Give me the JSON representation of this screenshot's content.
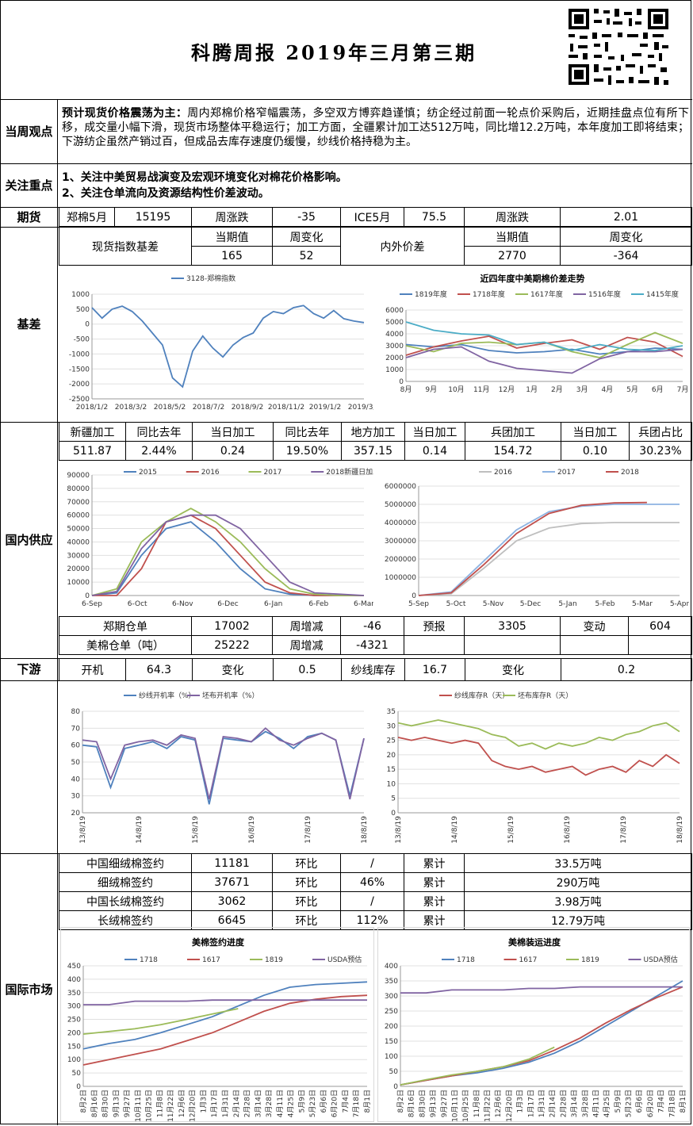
{
  "header": {
    "title": "科腾周报   2019年三月第三期"
  },
  "weekly_view": {
    "label": "当周观点",
    "lead": "预计现货价格震荡为主：",
    "body": "周内郑棉价格窄幅震荡，多空双方博弈趋谨慎；纺企经过前面一轮点价采购后，近期挂盘点位有所下移，成交量小幅下滑，现货市场整体平稳运行；加工方面，全疆累计加工达512万吨，同比增12.2万吨，本年度加工即将结束；下游纺企虽然产销过百，但成品去库存速度仍缓慢，纱线价格持稳为主。"
  },
  "focus": {
    "label": "关注重点",
    "items": [
      "1、关注中美贸易战演变及宏观环境变化对棉花价格影响。",
      "2、关注仓单流向及资源结构性价差波动。"
    ]
  },
  "futures": {
    "label": "期货",
    "cells": [
      "郑棉5月",
      "15195",
      "周涨跌",
      "-35",
      "ICE5月",
      "75.5",
      "周涨跌",
      "2.01"
    ]
  },
  "basis": {
    "label": "基差",
    "spot_label": "现货指数基差",
    "spot_cur_h": "当期值",
    "spot_chg_h": "周变化",
    "spot_cur": "165",
    "spot_chg": "52",
    "spread_label": "内外价差",
    "spread_cur_h": "当期值",
    "spread_chg_h": "周变化",
    "spread_cur": "2770",
    "spread_chg": "-364"
  },
  "domestic": {
    "label": "国内供应",
    "headers": [
      "新疆加工",
      "同比去年",
      "当日加工",
      "同比去年",
      "地方加工",
      "当日加工",
      "兵团加工",
      "当日加工",
      "兵团占比"
    ],
    "values": [
      "511.87",
      "2.44%",
      "0.24",
      "19.50%",
      "357.15",
      "0.14",
      "154.72",
      "0.10",
      "30.23%"
    ],
    "warrant_rows": [
      [
        "郑期仓单",
        "17002",
        "周增减",
        "-46",
        "预报",
        "3305",
        "变动",
        "604"
      ],
      [
        "美棉仓单（吨）",
        "25222",
        "周增减",
        "-4321",
        "",
        "",
        "",
        ""
      ]
    ]
  },
  "downstream": {
    "label": "下游",
    "cells": [
      "开机",
      "64.3",
      "变化",
      "0.5",
      "纱线库存",
      "16.7",
      "变化",
      "0.2"
    ]
  },
  "intl": {
    "label": "国际市场",
    "rows": [
      [
        "中国细绒棉签约",
        "11181",
        "环比",
        "/",
        "累计",
        "33.5万吨"
      ],
      [
        "细绒棉签约",
        "37671",
        "环比",
        "46%",
        "累计",
        "290万吨"
      ],
      [
        "中国长绒棉签约",
        "3062",
        "环比",
        "/",
        "累计",
        "3.98万吨"
      ],
      [
        "长绒棉签约",
        "6645",
        "环比",
        "112%",
        "累计",
        "12.79万吨"
      ]
    ]
  },
  "colors": {
    "blue": "#4f81bd",
    "red": "#c0504d",
    "green": "#9bbb59",
    "purple": "#8064a2",
    "cyan": "#4bacc6",
    "gray": "#bfbfbf"
  },
  "chart_data": [
    {
      "type": "line",
      "title": "",
      "series": [
        {
          "name": "3128-郑棉指数",
          "values": [
            550,
            200,
            500,
            600,
            420,
            100,
            -300,
            -700,
            -1800,
            -2100,
            -900,
            -400,
            -800,
            -1100,
            -700,
            -450,
            -300,
            200,
            420,
            350,
            550,
            620,
            350,
            200,
            450,
            180,
            100,
            50
          ]
        }
      ],
      "x_ticks": [
        "2018/1/2",
        "2018/3/2",
        "2018/5/2",
        "2018/7/2",
        "2018/9/2",
        "2018/11/2",
        "2019/1/2",
        "2019/3/2"
      ],
      "y_ticks": [
        "1000",
        "500",
        "0",
        "-500",
        "-1000",
        "-1500",
        "-2000",
        "-2500"
      ],
      "ylim": [
        -2500,
        1000
      ]
    },
    {
      "type": "line",
      "title": "近四年度中美期棉价差走势",
      "series": [
        {
          "name": "1819年度",
          "values": [
            3100,
            2900,
            3100,
            2600,
            2400,
            2500,
            2700,
            2300,
            2500,
            2800,
            2700
          ]
        },
        {
          "name": "1718年度",
          "values": [
            2200,
            2900,
            3400,
            3800,
            2800,
            3200,
            3500,
            2700,
            3700,
            3300,
            2100
          ]
        },
        {
          "name": "1617年度",
          "values": [
            3000,
            2500,
            3200,
            3300,
            3100,
            3300,
            2500,
            2000,
            3100,
            4100,
            3200
          ]
        },
        {
          "name": "1516年度",
          "values": [
            2000,
            2700,
            2900,
            1700,
            1100,
            900,
            700,
            1900,
            2500,
            2500,
            2700
          ]
        },
        {
          "name": "1415年度",
          "values": [
            5000,
            4300,
            4000,
            3900,
            3100,
            3300,
            2600,
            3100,
            2700,
            2600,
            3000
          ]
        }
      ],
      "x_ticks": [
        "8月",
        "9月",
        "10月",
        "11月",
        "12月",
        "1月",
        "2月",
        "3月",
        "4月",
        "5月",
        "6月",
        "7月"
      ],
      "y_ticks": [
        "6000",
        "5000",
        "4000",
        "3000",
        "2000",
        "1000",
        "0"
      ],
      "ylim": [
        0,
        6000
      ]
    },
    {
      "type": "line",
      "title": "",
      "series": [
        {
          "name": "2015",
          "values": [
            0,
            2000,
            30000,
            50000,
            55000,
            40000,
            20000,
            5000,
            1000,
            0,
            0,
            0
          ]
        },
        {
          "name": "2016",
          "values": [
            0,
            0,
            20000,
            55000,
            60000,
            50000,
            30000,
            10000,
            2000,
            0,
            0,
            0
          ]
        },
        {
          "name": "2017",
          "values": [
            0,
            5000,
            40000,
            55000,
            65000,
            55000,
            40000,
            20000,
            5000,
            1000,
            0,
            0
          ]
        },
        {
          "name": "2018新疆日加工",
          "values": [
            0,
            3000,
            35000,
            55000,
            60000,
            60000,
            50000,
            30000,
            10000,
            2000,
            1000,
            0
          ]
        }
      ],
      "x_ticks": [
        "6-Sep",
        "6-Oct",
        "6-Nov",
        "6-Dec",
        "6-Jan",
        "6-Feb",
        "6-Mar"
      ],
      "y_ticks": [
        "90000",
        "80000",
        "70000",
        "60000",
        "50000",
        "40000",
        "30000",
        "20000",
        "10000",
        "0"
      ],
      "ylim": [
        0,
        90000
      ]
    },
    {
      "type": "line",
      "title": "",
      "series": [
        {
          "name": "2016",
          "values": [
            0,
            100000,
            1500000,
            3000000,
            3700000,
            3950000,
            4000000,
            4000000,
            4000000
          ]
        },
        {
          "name": "2017",
          "values": [
            0,
            200000,
            1900000,
            3600000,
            4600000,
            4900000,
            5000000,
            5000000,
            5000000
          ]
        },
        {
          "name": "2018",
          "values": [
            0,
            150000,
            1700000,
            3400000,
            4500000,
            4950000,
            5080000,
            5100000
          ]
        }
      ],
      "x_ticks": [
        "5-Sep",
        "5-Oct",
        "5-Nov",
        "5-Dec",
        "5-Jan",
        "5-Feb",
        "5-Mar",
        "5-Apr"
      ],
      "y_ticks": [
        "6000000",
        "5000000",
        "4000000",
        "3000000",
        "2000000",
        "1000000",
        "0"
      ],
      "ylim": [
        0,
        6000000
      ]
    },
    {
      "type": "line",
      "title": "",
      "series": [
        {
          "name": "纱线开机率（%）",
          "values": [
            60,
            59,
            35,
            58,
            60,
            62,
            58,
            65,
            63,
            25,
            64,
            63,
            62,
            68,
            64,
            58,
            65,
            67,
            63,
            30,
            64
          ]
        },
        {
          "name": "坯布开机率（%）",
          "values": [
            63,
            62,
            40,
            60,
            62,
            63,
            60,
            66,
            64,
            28,
            65,
            64,
            62,
            70,
            63,
            60,
            64,
            67,
            63,
            28,
            64
          ]
        }
      ],
      "x_ticks": [
        "13/8/19",
        "14/8/19",
        "15/8/19",
        "16/8/19",
        "17/8/19",
        "18/8/19"
      ],
      "y_ticks": [
        "80",
        "70",
        "60",
        "50",
        "40",
        "30",
        "20"
      ],
      "ylim": [
        20,
        80
      ]
    },
    {
      "type": "line",
      "title": "",
      "series": [
        {
          "name": "纱线库存R（天）",
          "values": [
            26,
            25,
            26,
            25,
            24,
            25,
            24,
            18,
            16,
            15,
            16,
            14,
            15,
            16,
            13,
            15,
            16,
            14,
            18,
            16,
            20,
            17
          ]
        },
        {
          "name": "坯布库存R（天）",
          "values": [
            31,
            30,
            31,
            32,
            31,
            30,
            29,
            27,
            26,
            23,
            24,
            22,
            24,
            23,
            24,
            26,
            25,
            27,
            28,
            30,
            31,
            28
          ]
        }
      ],
      "x_ticks": [
        "13/8/19",
        "14/8/19",
        "15/8/19",
        "16/8/19",
        "17/8/19",
        "18/8/19"
      ],
      "y_ticks": [
        "35",
        "30",
        "25",
        "20",
        "15",
        "10",
        "5",
        "0"
      ],
      "ylim": [
        0,
        35
      ]
    },
    {
      "type": "line",
      "title": "美棉签约进度",
      "series": [
        {
          "name": "1718",
          "values": [
            140,
            160,
            175,
            200,
            230,
            260,
            300,
            340,
            370,
            380,
            385,
            390
          ]
        },
        {
          "name": "1617",
          "values": [
            80,
            100,
            120,
            140,
            170,
            200,
            240,
            280,
            310,
            325,
            335,
            340
          ]
        },
        {
          "name": "1819",
          "values": [
            195,
            205,
            215,
            230,
            250,
            270,
            290
          ]
        },
        {
          "name": "USDA预估",
          "values": [
            305,
            305,
            318,
            318,
            318,
            322,
            322,
            322,
            322,
            322,
            322,
            322
          ]
        }
      ],
      "x_ticks": [
        "8月2日",
        "8月16日",
        "8月30日",
        "9月13日",
        "9月27日",
        "10月11日",
        "10月25日",
        "11月8日",
        "11月22日",
        "12月6日",
        "12月20日",
        "1月3日",
        "1月17日",
        "1月31日",
        "2月14日",
        "2月28日",
        "3月14日",
        "3月28日",
        "4月11日",
        "4月25日",
        "5月9日",
        "5月23日",
        "6月6日",
        "6月20日",
        "7月4日",
        "7月18日",
        "8月1日"
      ],
      "y_ticks": [
        "450",
        "400",
        "350",
        "300",
        "250",
        "200",
        "150",
        "100",
        "50",
        "0"
      ],
      "ylim": [
        0,
        450
      ]
    },
    {
      "type": "line",
      "title": "美棉装运进度",
      "series": [
        {
          "name": "1718",
          "values": [
            5,
            20,
            35,
            45,
            60,
            80,
            110,
            150,
            200,
            250,
            300,
            350
          ]
        },
        {
          "name": "1617",
          "values": [
            5,
            20,
            35,
            50,
            65,
            85,
            120,
            160,
            210,
            255,
            295,
            330
          ]
        },
        {
          "name": "1819",
          "values": [
            5,
            22,
            38,
            50,
            65,
            90,
            130
          ]
        },
        {
          "name": "USDA预估",
          "values": [
            310,
            310,
            320,
            320,
            320,
            325,
            325,
            330,
            330,
            330,
            330,
            330
          ]
        }
      ],
      "x_ticks": [
        "8月2日",
        "8月16日",
        "8月30日",
        "9月13日",
        "9月27日",
        "10月11日",
        "10月25日",
        "11月8日",
        "11月22日",
        "12月6日",
        "12月20日",
        "1月3日",
        "1月17日",
        "1月31日",
        "2月14日",
        "2月28日",
        "3月14日",
        "3月28日",
        "4月11日",
        "4月25日",
        "5月9日",
        "5月23日",
        "6月6日",
        "6月20日",
        "7月4日",
        "7月18日",
        "8月1日"
      ],
      "y_ticks": [
        "400",
        "350",
        "300",
        "250",
        "200",
        "150",
        "100",
        "50",
        "0"
      ],
      "ylim": [
        0,
        400
      ]
    }
  ]
}
